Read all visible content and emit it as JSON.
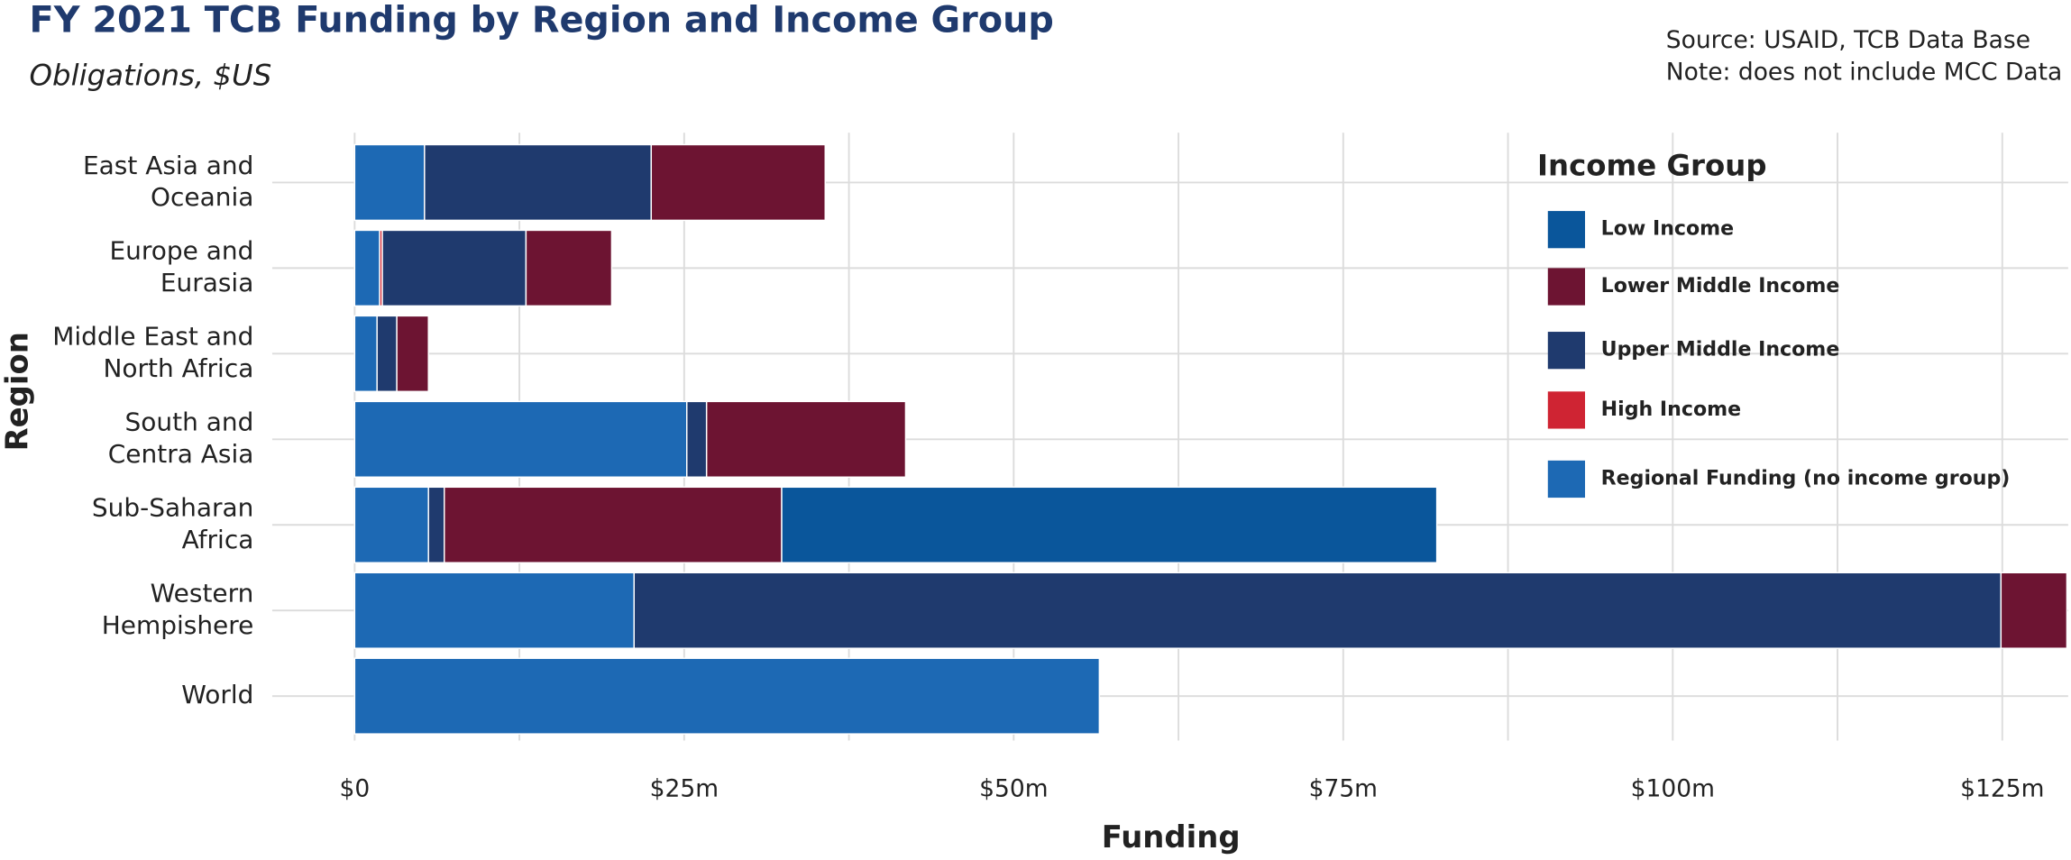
{
  "chart_data": {
    "type": "stacked-barh",
    "title": "FY 2021 TCB Funding by Region and Income Group",
    "subtitle": "Obligations, $US",
    "source": "Source: USAID, TCB Data Base",
    "note": "Note: does not include MCC Data",
    "x_label": "Funding",
    "y_label": "Region",
    "legend_title": "Income Group",
    "legend_position": "top-right",
    "categories": [
      [
        "East Asia and",
        "Oceania"
      ],
      [
        "Europe and",
        "Eurasia"
      ],
      [
        "Middle East and",
        "North Africa"
      ],
      [
        "South and",
        "Centra Asia"
      ],
      [
        "Sub-Saharan",
        "Africa"
      ],
      [
        "Western",
        "Hempishere"
      ],
      [
        "World"
      ]
    ],
    "series": [
      {
        "name": "Low Income",
        "color": "#0a569b",
        "values": [
          0,
          0,
          0,
          0,
          49.7,
          0,
          0
        ]
      },
      {
        "name": "Lower Middle Income",
        "color": "#6d1432",
        "values": [
          13.2,
          6.5,
          2.4,
          15.1,
          25.6,
          5.0,
          0
        ]
      },
      {
        "name": "Upper Middle Income",
        "color": "#1f3a6e",
        "values": [
          17.2,
          10.9,
          1.5,
          1.5,
          1.2,
          103.7,
          0
        ]
      },
      {
        "name": "High Income",
        "color": "#cf2433",
        "values": [
          0,
          0.2,
          0,
          0,
          0,
          0,
          0
        ]
      },
      {
        "name": "Regional Funding (no income group)",
        "color": "#1d69b4",
        "values": [
          5.3,
          1.9,
          1.7,
          25.2,
          5.6,
          21.2,
          56.5
        ]
      }
    ],
    "xlim": [
      -6.25,
      130
    ],
    "xticks": [
      {
        "value": 0,
        "label": "$0"
      },
      {
        "value": 25,
        "label": "$25m"
      },
      {
        "value": 50,
        "label": "$50m"
      },
      {
        "value": 75,
        "label": "$75m"
      },
      {
        "value": 100,
        "label": "$100m"
      },
      {
        "value": 125,
        "label": "$125m"
      }
    ],
    "minor_xticks": [
      12.5,
      37.5,
      62.5,
      87.5,
      112.5
    ],
    "grid": true
  }
}
